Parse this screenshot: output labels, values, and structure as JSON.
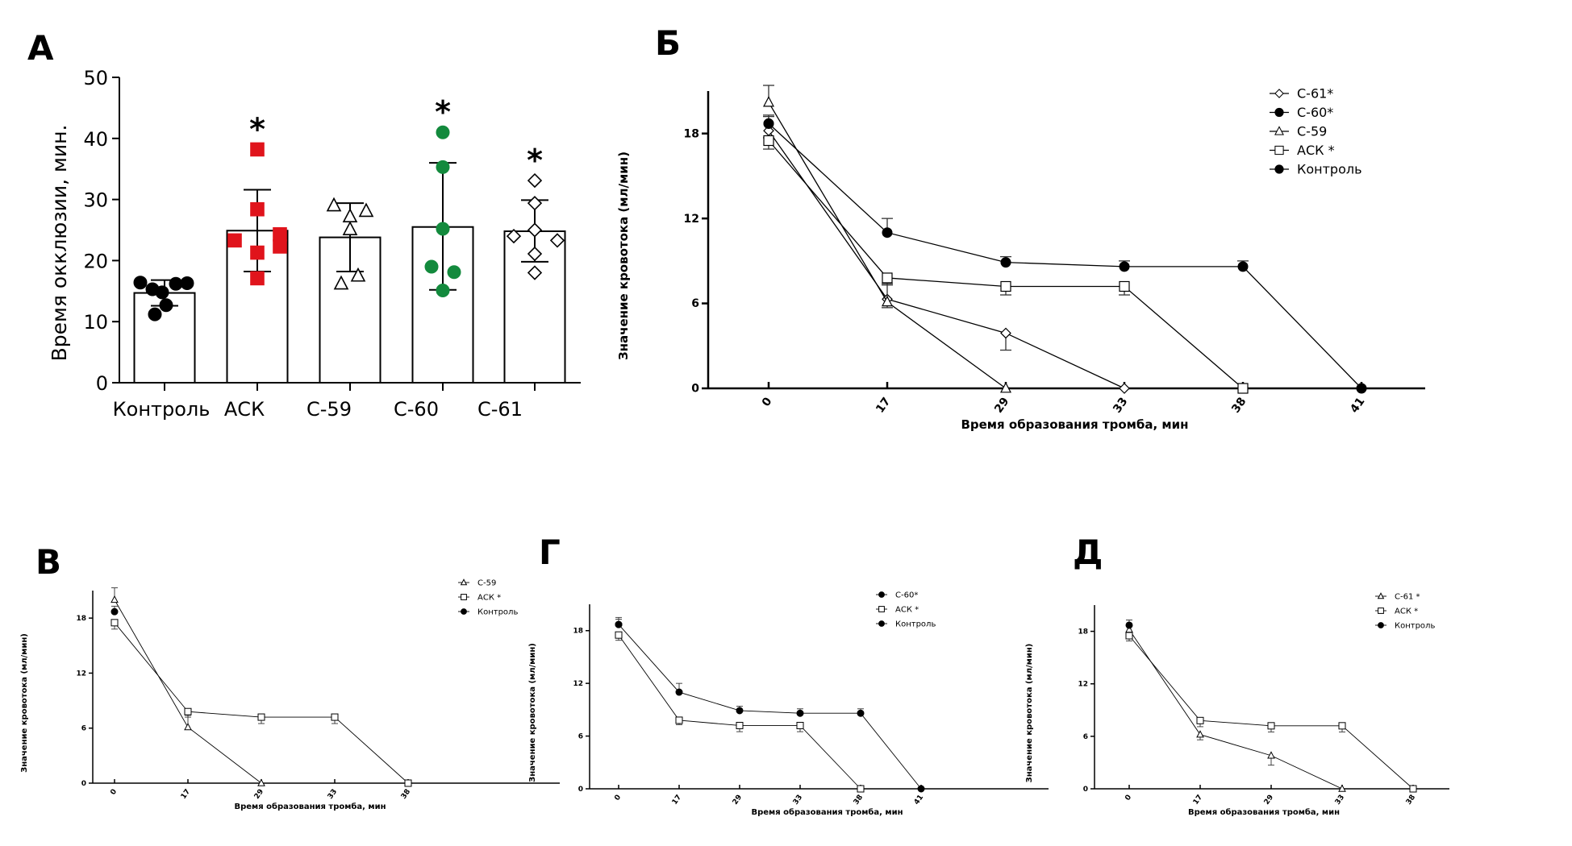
{
  "figure": {
    "panel_letters": [
      "А",
      "Б",
      "В",
      "Г",
      "Д"
    ]
  },
  "chart_data": [
    {
      "panel": "А",
      "type": "bar",
      "title": "",
      "xlabel": "",
      "ylabel": "Время окклюзии, мин.",
      "ylim": [
        0,
        50
      ],
      "yticks": [
        0,
        10,
        20,
        30,
        40,
        50
      ],
      "grid": false,
      "categories": [
        "Контроль",
        "АСК",
        "С-59",
        "С-60",
        "С-61"
      ],
      "means": [
        14.7,
        24.9,
        23.8,
        25.5,
        24.8
      ],
      "errors": [
        [
          12.6,
          16.8
        ],
        [
          18.2,
          31.6
        ],
        [
          18.2,
          29.4
        ],
        [
          15.2,
          36.0
        ],
        [
          19.8,
          29.9
        ]
      ],
      "significance": [
        "",
        "*",
        "",
        "*",
        "*"
      ],
      "points": [
        {
          "category": "Контроль",
          "marker": "circle-filled",
          "color": "#000000",
          "values": [
            16.4,
            15.3,
            14.8,
            16.2,
            16.3,
            12.7,
            11.2
          ]
        },
        {
          "category": "АСК",
          "marker": "square-filled",
          "color": "#e0141c",
          "values": [
            38.2,
            28.4,
            23.3,
            24.3,
            22.3,
            21.3,
            17.1
          ]
        },
        {
          "category": "С-59",
          "marker": "triangle-open",
          "color": "#000000",
          "values": [
            29.0,
            27.2,
            25.1,
            28.1,
            16.2,
            17.5
          ]
        },
        {
          "category": "С-60",
          "marker": "circle-filled",
          "color": "#138a3d",
          "values": [
            41.0,
            35.3,
            25.2,
            19.0,
            18.1,
            15.1
          ]
        },
        {
          "category": "С-61",
          "marker": "diamond-open",
          "color": "#000000",
          "values": [
            33.1,
            29.4,
            25.0,
            24.0,
            23.3,
            21.1,
            18.0
          ]
        }
      ]
    },
    {
      "panel": "Б",
      "type": "line",
      "xlabel": "Время образования тромба, мин",
      "ylabel": "Значение кровотока (мл/мин)",
      "ylim": [
        0,
        21
      ],
      "yticks": [
        0,
        6,
        12,
        18
      ],
      "x_categories": [
        "0",
        "17",
        "29",
        "33",
        "38",
        "41"
      ],
      "legend_position": "top-right",
      "series": [
        {
          "name": "С-61*",
          "marker": "diamond",
          "x": [
            "0",
            "17",
            "29",
            "33"
          ],
          "values": [
            18.2,
            6.3,
            3.9,
            0
          ],
          "err": [
            0.5,
            0.6,
            1.2,
            0
          ]
        },
        {
          "name": "С-60*",
          "marker": "circle",
          "x": [
            "0",
            "17",
            "29",
            "33",
            "38",
            "41"
          ],
          "values": [
            18.7,
            11.0,
            8.9,
            8.6,
            8.6,
            0
          ],
          "err": [
            0.5,
            1.0,
            0.4,
            0.4,
            0.4,
            0
          ]
        },
        {
          "name": "С-59",
          "marker": "triangle",
          "x": [
            "0",
            "17",
            "29"
          ],
          "values": [
            20.2,
            6.1,
            0
          ],
          "err": [
            1.2,
            1.3,
            0
          ]
        },
        {
          "name": "АСК *",
          "marker": "square",
          "x": [
            "0",
            "17",
            "29",
            "33",
            "38"
          ],
          "values": [
            17.5,
            7.8,
            7.2,
            7.2,
            0
          ],
          "err": [
            0.6,
            0.5,
            0.6,
            0.6,
            0
          ]
        },
        {
          "name": "Контроль",
          "marker": "circle",
          "x": [
            "0"
          ],
          "values": [
            18.7
          ],
          "err": [
            0.6
          ]
        }
      ]
    },
    {
      "panel": "В",
      "type": "line",
      "xlabel": "Время образования тромба, мин",
      "ylabel": "Значение кровотока (мл/мин)",
      "ylim": [
        0,
        21
      ],
      "yticks": [
        0,
        6,
        12,
        18
      ],
      "x_categories": [
        "0",
        "17",
        "29",
        "33",
        "38"
      ],
      "legend_position": "top-right",
      "series": [
        {
          "name": "С-59",
          "marker": "triangle",
          "x": [
            "0",
            "17",
            "29"
          ],
          "values": [
            20.0,
            6.1,
            0
          ],
          "err": [
            1.3,
            1.3,
            0
          ]
        },
        {
          "name": "АСК *",
          "marker": "square",
          "x": [
            "0",
            "17",
            "29",
            "33",
            "38"
          ],
          "values": [
            17.5,
            7.8,
            7.2,
            7.2,
            0
          ],
          "err": [
            0.7,
            0.6,
            0.7,
            0.7,
            0
          ]
        },
        {
          "name": "Контроль",
          "marker": "circle",
          "x": [
            "0"
          ],
          "values": [
            18.7
          ],
          "err": [
            0.6
          ]
        }
      ]
    },
    {
      "panel": "Г",
      "type": "line",
      "xlabel": "Время образования тромба, мин",
      "ylabel": "Значение кровотока (мл/мин)",
      "ylim": [
        0,
        21
      ],
      "yticks": [
        0,
        6,
        12,
        18
      ],
      "x_categories": [
        "0",
        "17",
        "29",
        "33",
        "38",
        "41"
      ],
      "legend_position": "top-right",
      "series": [
        {
          "name": "С-60*",
          "marker": "circle",
          "x": [
            "0",
            "17",
            "29",
            "33",
            "38",
            "41"
          ],
          "values": [
            18.7,
            11.0,
            8.9,
            8.6,
            8.6,
            0
          ],
          "err": [
            0.8,
            1.0,
            0.5,
            0.5,
            0.5,
            0
          ]
        },
        {
          "name": "АСК *",
          "marker": "square",
          "x": [
            "0",
            "17",
            "29",
            "33",
            "38"
          ],
          "values": [
            17.5,
            7.8,
            7.2,
            7.2,
            0
          ],
          "err": [
            0.6,
            0.5,
            0.7,
            0.7,
            0
          ]
        },
        {
          "name": "Контроль",
          "marker": "circle",
          "x": [
            "0"
          ],
          "values": [
            18.7
          ],
          "err": [
            0.6
          ]
        }
      ]
    },
    {
      "panel": "Д",
      "type": "line",
      "xlabel": "Время образования тромба, мин",
      "ylabel": "Значение кровотока (мл/мин)",
      "ylim": [
        0,
        21
      ],
      "yticks": [
        0,
        6,
        12,
        18
      ],
      "x_categories": [
        "0",
        "17",
        "29",
        "33",
        "38"
      ],
      "legend_position": "top-right",
      "series": [
        {
          "name": "С-61 *",
          "marker": "triangle",
          "x": [
            "0",
            "17",
            "29",
            "33"
          ],
          "values": [
            18.2,
            6.2,
            3.8,
            0
          ],
          "err": [
            0.5,
            0.6,
            1.1,
            0
          ]
        },
        {
          "name": "АСК *",
          "marker": "square",
          "x": [
            "0",
            "17",
            "29",
            "33",
            "38"
          ],
          "values": [
            17.5,
            7.8,
            7.2,
            7.2,
            0
          ],
          "err": [
            0.6,
            0.7,
            0.7,
            0.7,
            0
          ]
        },
        {
          "name": "Контроль",
          "marker": "circle",
          "x": [
            "0"
          ],
          "values": [
            18.7
          ],
          "err": [
            0.6
          ]
        }
      ]
    }
  ]
}
